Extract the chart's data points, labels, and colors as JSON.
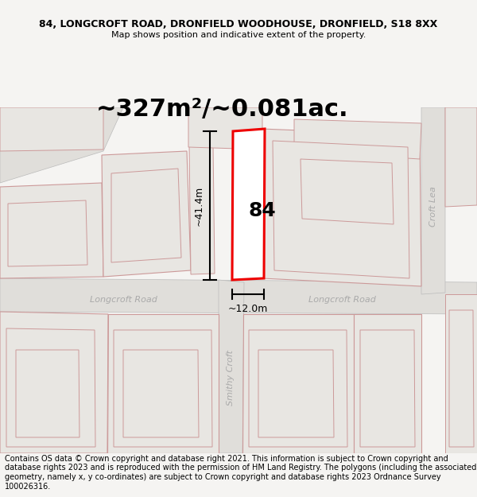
{
  "title_line1": "84, LONGCROFT ROAD, DRONFIELD WOODHOUSE, DRONFIELD, S18 8XX",
  "title_line2": "Map shows position and indicative extent of the property.",
  "area_label": "~327m²/~0.081ac.",
  "dim_height": "~41.4m",
  "dim_width": "~12.0m",
  "number_label": "84",
  "road_label1": "Longcroft Road",
  "road_label2": "Longcroft Road",
  "street_croft_lea": "Croft Lea",
  "street_smithy": "Smithy Croft",
  "footer_text": "Contains OS data © Crown copyright and database right 2021. This information is subject to Crown copyright and database rights 2023 and is reproduced with the permission of HM Land Registry. The polygons (including the associated geometry, namely x, y co-ordinates) are subject to Crown copyright and database rights 2023 Ordnance Survey 100026316.",
  "bg_color": "#f5f4f2",
  "map_bg": "#f5f4f2",
  "parcel_fill": "#e8e6e2",
  "parcel_edge": "#cc9999",
  "road_fill": "#e0deda",
  "road_edge": "#bbbbbb",
  "highlight_fill": "#ffffff",
  "highlight_edge": "#ee0000",
  "dim_color": "#222222",
  "label_color": "#aaaaaa",
  "title_fontsize": 9,
  "subtitle_fontsize": 8,
  "area_fontsize": 22,
  "number_fontsize": 18,
  "footer_fontsize": 7
}
